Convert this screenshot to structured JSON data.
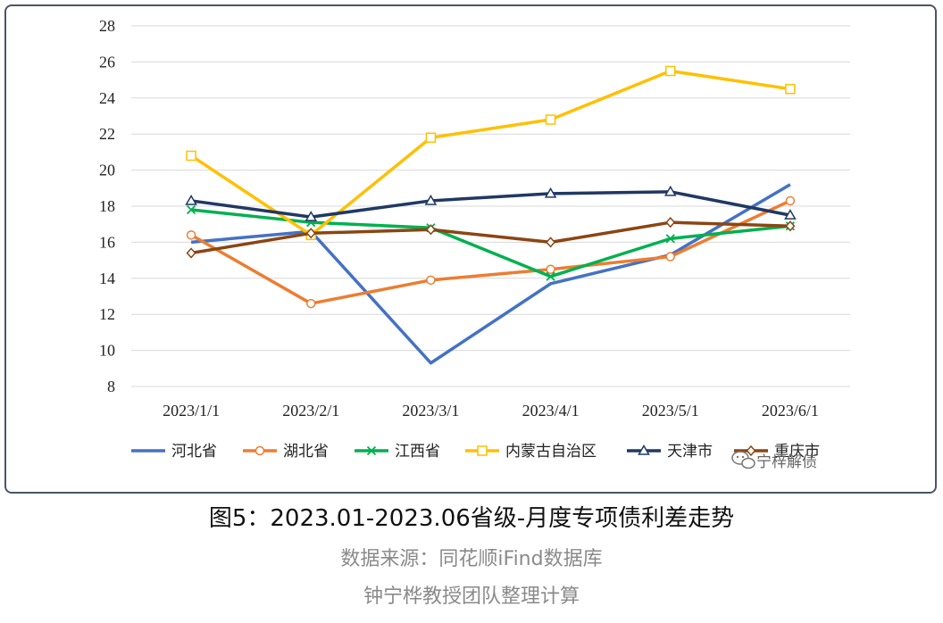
{
  "chart_data": {
    "type": "line",
    "title": "",
    "xlabel": "",
    "ylabel": "",
    "categories": [
      "2023/1/1",
      "2023/2/1",
      "2023/3/1",
      "2023/4/1",
      "2023/5/1",
      "2023/6/1"
    ],
    "ylim": [
      8,
      28
    ],
    "yticks": [
      8,
      10,
      12,
      14,
      16,
      18,
      20,
      22,
      24,
      26,
      28
    ],
    "grid": true,
    "legend_position": "bottom",
    "series": [
      {
        "name": "河北省",
        "color": "#4472c4",
        "marker": "none",
        "values": [
          16.0,
          16.6,
          9.3,
          13.7,
          15.3,
          19.2
        ]
      },
      {
        "name": "湖北省",
        "color": "#ed7d31",
        "marker": "circle",
        "values": [
          16.4,
          12.6,
          13.9,
          14.5,
          15.2,
          18.3
        ]
      },
      {
        "name": "江西省",
        "color": "#00b050",
        "marker": "x",
        "values": [
          17.8,
          17.1,
          16.8,
          14.1,
          16.2,
          16.9
        ]
      },
      {
        "name": "内蒙古自治区",
        "color": "#ffc000",
        "marker": "square",
        "values": [
          20.8,
          16.4,
          21.8,
          22.8,
          25.5,
          24.5
        ]
      },
      {
        "name": "天津市",
        "color": "#203864",
        "marker": "triangle",
        "values": [
          18.3,
          17.4,
          18.3,
          18.7,
          18.8,
          17.5
        ]
      },
      {
        "name": "重庆市",
        "color": "#8b4513",
        "marker": "diamond",
        "values": [
          15.4,
          16.5,
          16.7,
          16.0,
          17.1,
          16.9
        ]
      }
    ]
  },
  "watermark": "宁梓解债",
  "caption": {
    "title": "图5：2023.01-2023.06省级-月度专项债利差走势",
    "source": "数据来源：同花顺iFind数据库",
    "credit": "钟宁桦教授团队整理计算"
  }
}
